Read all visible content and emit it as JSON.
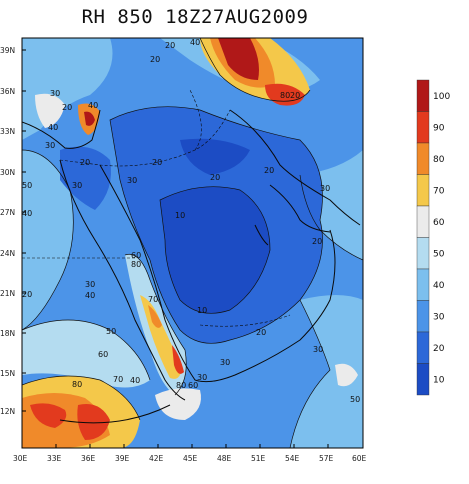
{
  "title": "RH 850 18Z27AUG2009",
  "map": {
    "lat_labels": [
      "39N",
      "36N",
      "33N",
      "30N",
      "27N",
      "24N",
      "21N",
      "18N",
      "15N",
      "12N"
    ],
    "lon_labels": [
      "30E",
      "33E",
      "36E",
      "39E",
      "42E",
      "45E",
      "48E",
      "51E",
      "54E",
      "57E",
      "60E"
    ],
    "contour_labels": [
      {
        "text": "20",
        "name": "contour-label-20-north"
      },
      {
        "text": "40",
        "name": "contour-label-40-north"
      },
      {
        "text": "20",
        "name": "contour-label-20-north-b"
      },
      {
        "text": "30",
        "name": "contour-label-30-nw"
      },
      {
        "text": "40",
        "name": "contour-label-40-nw"
      },
      {
        "text": "20",
        "name": "contour-label-20-nw"
      },
      {
        "text": "40",
        "name": "contour-label-40-lebanon"
      },
      {
        "text": "30",
        "name": "contour-label-30-levant"
      },
      {
        "text": "20",
        "name": "contour-label-20-levant"
      },
      {
        "text": "50",
        "name": "contour-label-50-egypt"
      },
      {
        "text": "30",
        "name": "contour-label-30-sinai"
      },
      {
        "text": "40",
        "name": "contour-label-40-egypt"
      },
      {
        "text": "20",
        "name": "contour-label-20-iraq"
      },
      {
        "text": "30",
        "name": "contour-label-30-jordan"
      },
      {
        "text": "20",
        "name": "contour-label-20-gulf"
      },
      {
        "text": "20",
        "name": "contour-label-20-iran"
      },
      {
        "text": "30",
        "name": "contour-label-30-iran"
      },
      {
        "text": "10",
        "name": "contour-label-10-arabia"
      },
      {
        "text": "20",
        "name": "contour-label-20-oman"
      },
      {
        "text": "30",
        "name": "contour-label-30-redsea"
      },
      {
        "text": "40",
        "name": "contour-label-40-redsea"
      },
      {
        "text": "20",
        "name": "contour-label-20-sudan"
      },
      {
        "text": "60",
        "name": "contour-label-60-hejaz"
      },
      {
        "text": "80",
        "name": "contour-label-80-hejaz"
      },
      {
        "text": "70",
        "name": "contour-label-70-asir"
      },
      {
        "text": "10",
        "name": "contour-label-10-empty-quarter"
      },
      {
        "text": "20",
        "name": "contour-label-20-yemen"
      },
      {
        "text": "50",
        "name": "contour-label-50-sudan"
      },
      {
        "text": "30",
        "name": "contour-label-30-sea"
      },
      {
        "text": "60",
        "name": "contour-label-60-eritrea"
      },
      {
        "text": "70",
        "name": "contour-label-70-eritrea"
      },
      {
        "text": "40",
        "name": "contour-label-40-eritrea"
      },
      {
        "text": "80",
        "name": "contour-label-80-ethiopia"
      },
      {
        "text": "80",
        "name": "contour-label-80-yemen"
      },
      {
        "text": "60",
        "name": "contour-label-60-yemen"
      },
      {
        "text": "30",
        "name": "contour-label-30-aden"
      },
      {
        "text": "50",
        "name": "contour-label-50-arabian-sea"
      },
      {
        "text": "30",
        "name": "contour-label-30-arabian-sea"
      },
      {
        "text": "20",
        "name": "contour-label-20-arabian-sea"
      },
      {
        "text": "80",
        "name": "contour-label-80-iran-east"
      }
    ]
  },
  "colorbar": {
    "labels": [
      "100",
      "90",
      "80",
      "70",
      "60",
      "50",
      "40",
      "30",
      "20",
      "10"
    ],
    "colors": [
      "#b01818",
      "#e23a1e",
      "#f08a2a",
      "#f4c84a",
      "#ebebeb",
      "#b4dcf0",
      "#7cbfee",
      "#4c94e8",
      "#2c68d8",
      "#1c4cc4"
    ]
  }
}
